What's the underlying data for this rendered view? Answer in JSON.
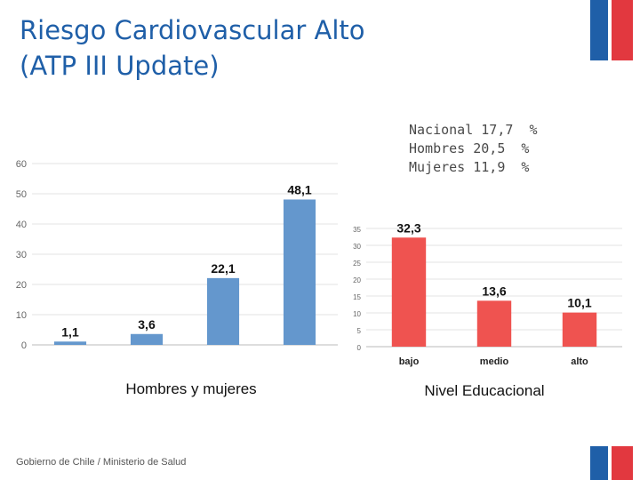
{
  "title": {
    "line1": "Riesgo Cardiovascular Alto",
    "line2": "(ATP III Update)"
  },
  "stats": {
    "nacional": "Nacional 17,7  %",
    "hombres": "Hombres 20,5  %",
    "mujeres": "Mujeres 11,9  %"
  },
  "captions": {
    "left": "Hombres y mujeres",
    "right": "Nivel Educacional"
  },
  "footer": "Gobierno de Chile / Ministerio de Salud",
  "colors": {
    "title": "#1f5fa8",
    "blue_bar": "#6497cd",
    "red_bar": "#ef5350",
    "flag_blue": "#1f5fa8",
    "flag_red": "#e2383f"
  },
  "chart_data": [
    {
      "type": "bar",
      "title": "Hombres y mujeres",
      "categories": [
        "",
        "",
        "",
        ""
      ],
      "values": [
        1.1,
        3.6,
        22.1,
        48.1
      ],
      "value_labels": [
        "1,1",
        "3,6",
        "22,1",
        "48,1"
      ],
      "ylim": [
        0,
        60
      ],
      "yticks": [
        0,
        10,
        20,
        30,
        40,
        50,
        60
      ],
      "grid": true,
      "color": "#6497cd"
    },
    {
      "type": "bar",
      "title": "Nivel Educacional",
      "categories": [
        "bajo",
        "medio",
        "alto"
      ],
      "values": [
        32.3,
        13.6,
        10.1
      ],
      "value_labels": [
        "32,3",
        "13,6",
        "10,1"
      ],
      "ylim": [
        0,
        35
      ],
      "yticks": [
        0,
        5,
        10,
        15,
        20,
        25,
        30,
        35
      ],
      "grid": true,
      "color": "#ef5350"
    }
  ]
}
